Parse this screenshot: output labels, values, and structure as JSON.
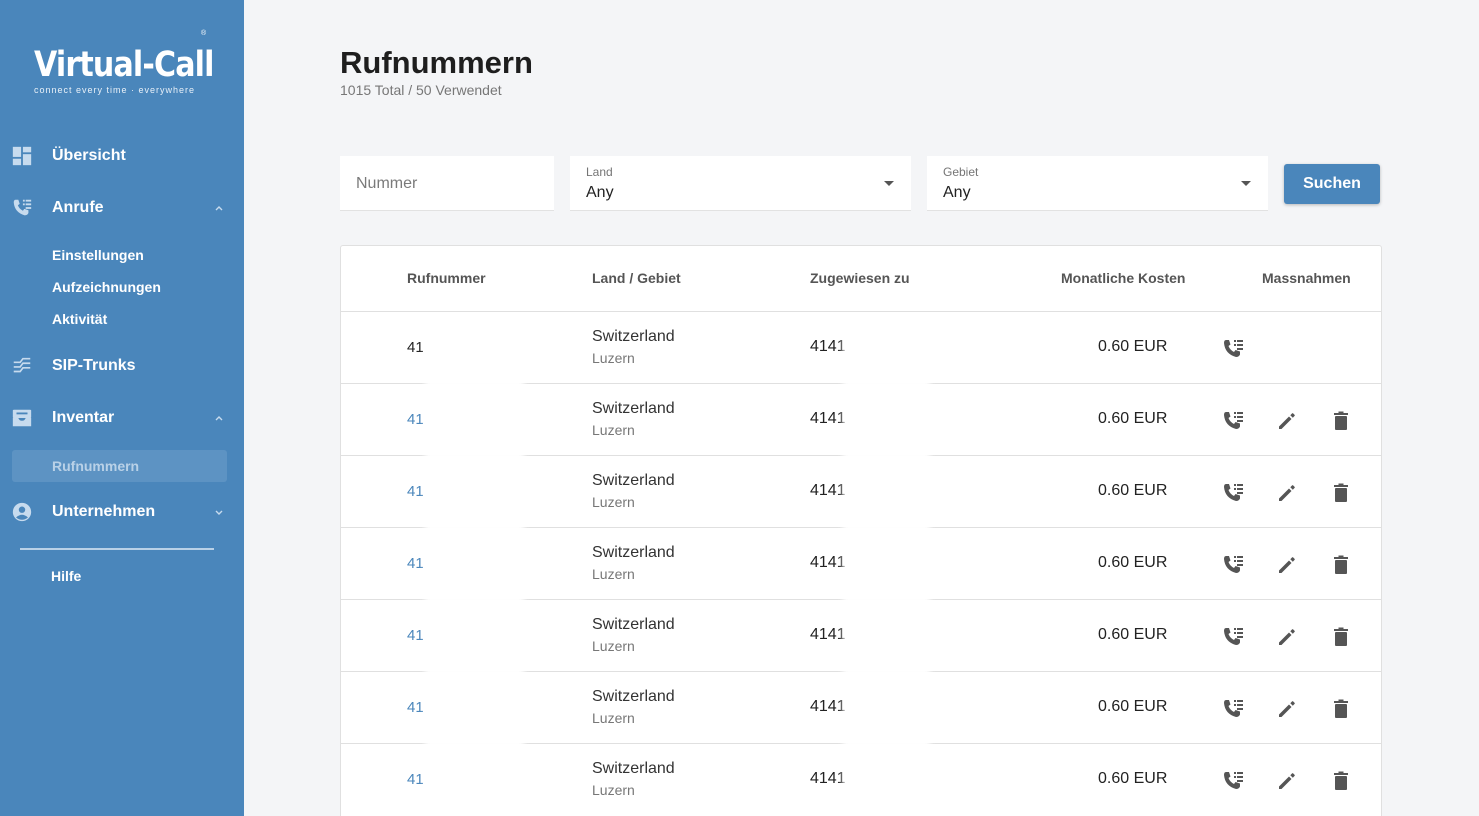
{
  "brand": {
    "name": "Virtual-Call",
    "tagline": "connect every time · everywhere",
    "registered": "®"
  },
  "sidebar": {
    "items": [
      {
        "label": "Übersicht",
        "icon": "dashboard-icon"
      },
      {
        "label": "Anrufe",
        "icon": "phone-list-icon",
        "expanded": true,
        "children": [
          "Einstellungen",
          "Aufzeichnungen",
          "Aktivität"
        ]
      },
      {
        "label": "SIP-Trunks",
        "icon": "trunk-icon"
      },
      {
        "label": "Inventar",
        "icon": "inbox-icon",
        "expanded": true,
        "children": [
          "Rufnummern"
        ]
      },
      {
        "label": "Unternehmen",
        "icon": "account-circle-icon",
        "expanded": false
      },
      {
        "label": "Hilfe"
      }
    ],
    "active_item": "Rufnummern"
  },
  "header": {
    "title": "Rufnummern",
    "subtitle": "1015 Total / 50 Verwendet"
  },
  "filters": {
    "number_placeholder": "Nummer",
    "country_label": "Land",
    "country_value": "Any",
    "area_label": "Gebiet",
    "area_value": "Any",
    "search_label": "Suchen"
  },
  "table": {
    "columns": [
      "Rufnummer",
      "Land / Gebiet",
      "Zugewiesen zu",
      "Monatliche Kosten",
      "Massnahmen"
    ],
    "rows": [
      {
        "number": "41",
        "country": "Switzerland",
        "region": "Luzern",
        "assigned": "4141",
        "cost": "0.60 EUR",
        "actions": [
          "call-forward"
        ]
      },
      {
        "number": "41",
        "country": "Switzerland",
        "region": "Luzern",
        "assigned": "4141",
        "cost": "0.60 EUR",
        "actions": [
          "call-forward",
          "edit",
          "delete"
        ]
      },
      {
        "number": "41",
        "country": "Switzerland",
        "region": "Luzern",
        "assigned": "4141",
        "cost": "0.60 EUR",
        "actions": [
          "call-forward",
          "edit",
          "delete"
        ]
      },
      {
        "number": "41",
        "country": "Switzerland",
        "region": "Luzern",
        "assigned": "4141",
        "cost": "0.60 EUR",
        "actions": [
          "call-forward",
          "edit",
          "delete"
        ]
      },
      {
        "number": "41",
        "country": "Switzerland",
        "region": "Luzern",
        "assigned": "4141",
        "cost": "0.60 EUR",
        "actions": [
          "call-forward",
          "edit",
          "delete"
        ]
      },
      {
        "number": "41",
        "country": "Switzerland",
        "region": "Luzern",
        "assigned": "4141",
        "cost": "0.60 EUR",
        "actions": [
          "call-forward",
          "edit",
          "delete"
        ]
      },
      {
        "number": "41",
        "country": "Switzerland",
        "region": "Luzern",
        "assigned": "4141",
        "cost": "0.60 EUR",
        "actions": [
          "call-forward",
          "edit",
          "delete"
        ]
      }
    ]
  },
  "colors": {
    "sidebar": "#4a86bb",
    "accent": "#4a86bb",
    "background": "#f4f5f7",
    "icon": "#555555"
  }
}
